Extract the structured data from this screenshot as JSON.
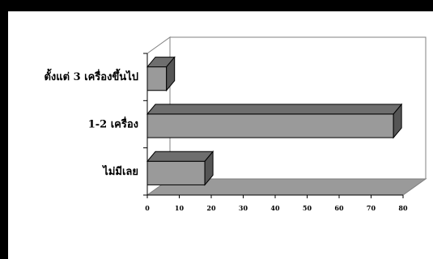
{
  "chart_data": {
    "type": "bar",
    "orientation": "horizontal",
    "style": "3d",
    "categories": [
      "ไม่มีเลย",
      "1-2 เครื่อง",
      "ตั้งแต่ 3 เครื่องขึ้นไป"
    ],
    "values": [
      18,
      77,
      6
    ],
    "xlim": [
      0,
      80
    ],
    "xticks": [
      "0",
      "10",
      "20",
      "30",
      "40",
      "50",
      "60",
      "70",
      "80"
    ],
    "title": "",
    "xlabel": "",
    "ylabel": "",
    "grid": false,
    "legend": "none",
    "colors": {
      "bar_front": "#9a9a9a",
      "bar_top": "#6e6e6e",
      "bar_side": "#555555",
      "wall": "#ffffff",
      "floor": "#9a9a9a",
      "axis": "#000000"
    }
  }
}
